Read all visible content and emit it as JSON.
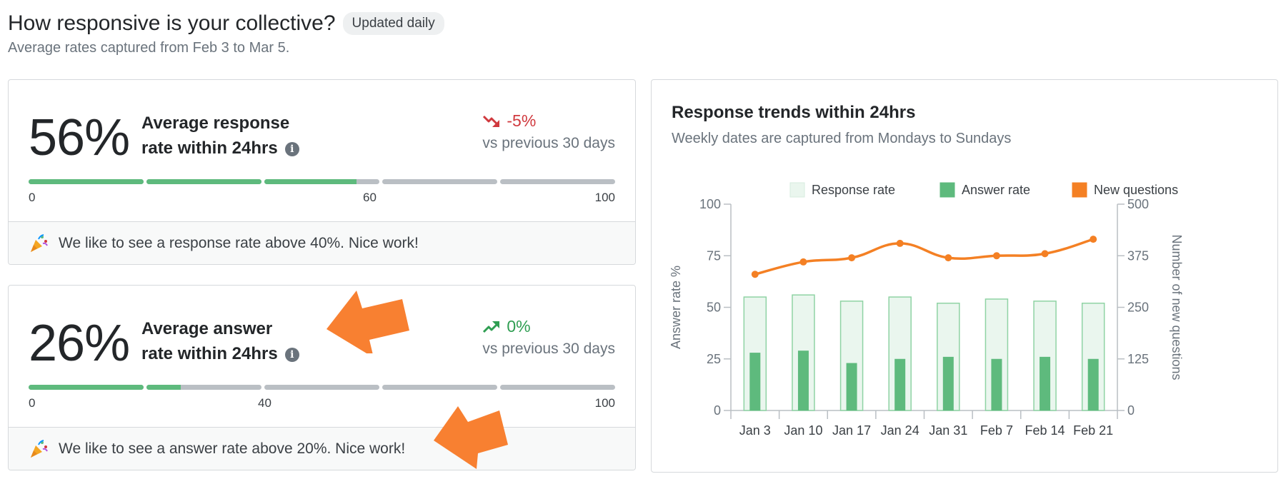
{
  "header": {
    "title": "How responsive is your collective?",
    "badge": "Updated daily",
    "subtitle": "Average rates captured from Feb 3 to Mar 5."
  },
  "cards": [
    {
      "value": "56%",
      "label_line1": "Average response",
      "label_line2": "rate within 24hrs",
      "trend_value": "-5%",
      "trend_direction": "down",
      "trend_caption": "vs previous 30 days",
      "progress_percent": 56,
      "ticks": [
        "0",
        "60",
        "100"
      ],
      "footer": "We like to see a response rate above 40%. Nice work!"
    },
    {
      "value": "26%",
      "label_line1": "Average answer",
      "label_line2": "rate within 24hrs",
      "trend_value": "0%",
      "trend_direction": "up",
      "trend_caption": "vs previous 30 days",
      "progress_percent": 26,
      "ticks": [
        "0",
        "40",
        "100"
      ],
      "footer": "We like to see a answer rate above 20%. Nice work!"
    }
  ],
  "chart": {
    "title": "Response trends within 24hrs",
    "subtitle": "Weekly dates are captured from Mondays to Sundays"
  },
  "colors": {
    "response": "#eaf6ee",
    "response_border": "#8fd3a4",
    "answer": "#5eba7d",
    "questions": "#f48024",
    "trend_down": "#d0393e",
    "trend_up": "#2f9e52",
    "arrow": "#f88031"
  },
  "chart_data": {
    "type": "bar",
    "categories": [
      "Jan 3",
      "Jan 10",
      "Jan 17",
      "Jan 24",
      "Jan 31",
      "Feb 7",
      "Feb 14",
      "Feb 21"
    ],
    "series": [
      {
        "name": "Response rate",
        "type": "bar",
        "axis": "left",
        "values": [
          55,
          56,
          53,
          55,
          52,
          54,
          53,
          52
        ]
      },
      {
        "name": "Answer rate",
        "type": "bar",
        "axis": "left",
        "values": [
          28,
          29,
          23,
          25,
          26,
          25,
          26,
          25
        ]
      },
      {
        "name": "New questions",
        "type": "line",
        "axis": "right",
        "values": [
          330,
          360,
          370,
          405,
          370,
          375,
          380,
          415
        ]
      }
    ],
    "ylabel": "Answer rate %",
    "y2label": "Number of new questions",
    "ylim": [
      0,
      100
    ],
    "y2lim": [
      0,
      500
    ],
    "yticks": [
      "0",
      "25",
      "50",
      "75",
      "100"
    ],
    "y2ticks": [
      "0",
      "125",
      "250",
      "375",
      "500"
    ],
    "legend_position": "top",
    "grid": false
  }
}
